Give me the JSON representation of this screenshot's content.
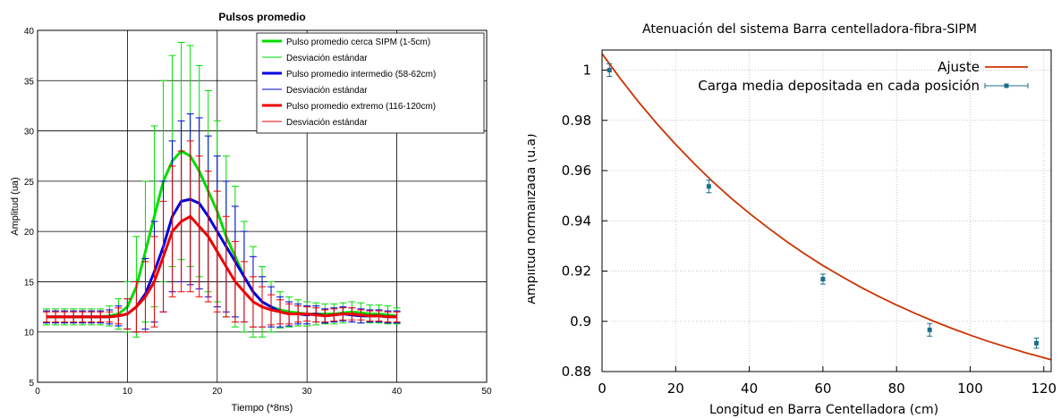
{
  "chart_data": [
    {
      "type": "line",
      "title": "Pulsos promedio",
      "xlabel": "Tiempo (*8ns)",
      "ylabel": "Amplitud (ua)",
      "xlim": [
        0,
        50
      ],
      "ylim": [
        5,
        40
      ],
      "xticks": [
        0,
        10,
        20,
        30,
        40,
        50
      ],
      "yticks": [
        5,
        10,
        15,
        20,
        25,
        30,
        35,
        40
      ],
      "grid": true,
      "legend_position": "top-right",
      "colors": {
        "green": "#00dd00",
        "blue": "#0000dd",
        "red": "#ee0000"
      },
      "series": [
        {
          "name": "Pulso promedio cerca SIPM (1-5cm)",
          "err_name": "Desviación estándar",
          "color": "#00dd00",
          "x": [
            1,
            2,
            3,
            4,
            5,
            6,
            7,
            8,
            9,
            10,
            11,
            12,
            13,
            14,
            15,
            16,
            17,
            18,
            19,
            20,
            21,
            22,
            23,
            24,
            25,
            26,
            27,
            28,
            29,
            30,
            31,
            32,
            33,
            34,
            35,
            36,
            37,
            38,
            39,
            40
          ],
          "y": [
            11.5,
            11.5,
            11.5,
            11.5,
            11.5,
            11.5,
            11.5,
            11.6,
            11.8,
            12.5,
            14.5,
            18.0,
            21.5,
            25.0,
            27.0,
            28.0,
            27.5,
            26.0,
            24.0,
            22.0,
            19.5,
            17.5,
            15.5,
            14.0,
            13.0,
            12.5,
            12.2,
            12.0,
            11.9,
            11.8,
            11.8,
            11.8,
            11.8,
            11.9,
            12.0,
            11.9,
            11.8,
            11.8,
            11.7,
            11.6
          ],
          "err": [
            0.8,
            0.8,
            0.8,
            0.8,
            0.8,
            0.8,
            0.8,
            1.0,
            1.5,
            2.5,
            5.0,
            7.0,
            9.0,
            10.0,
            10.5,
            10.8,
            11.0,
            10.5,
            10.0,
            9.0,
            8.0,
            7.0,
            5.5,
            4.5,
            3.5,
            2.5,
            1.8,
            1.5,
            1.3,
            1.2,
            1.1,
            1.0,
            1.0,
            1.0,
            1.0,
            1.0,
            0.9,
            0.9,
            0.9,
            0.8
          ]
        },
        {
          "name": "Pulso promedio intermedio (58-62cm)",
          "err_name": "Desviación estándar",
          "color": "#0000dd",
          "x": [
            1,
            2,
            3,
            4,
            5,
            6,
            7,
            8,
            9,
            10,
            11,
            12,
            13,
            14,
            15,
            16,
            17,
            18,
            19,
            20,
            21,
            22,
            23,
            24,
            25,
            26,
            27,
            28,
            29,
            30,
            31,
            32,
            33,
            34,
            35,
            36,
            37,
            38,
            39,
            40
          ],
          "y": [
            11.5,
            11.5,
            11.5,
            11.5,
            11.5,
            11.5,
            11.5,
            11.5,
            11.6,
            11.8,
            12.5,
            13.8,
            16.0,
            18.5,
            21.5,
            23.0,
            23.2,
            22.8,
            21.5,
            20.0,
            18.5,
            17.0,
            15.5,
            14.0,
            13.0,
            12.5,
            12.0,
            11.8,
            11.8,
            11.7,
            11.8,
            11.6,
            11.7,
            11.8,
            11.7,
            11.6,
            11.6,
            11.6,
            11.5,
            11.5
          ],
          "err": [
            0.6,
            0.6,
            0.6,
            0.6,
            0.6,
            0.6,
            0.6,
            0.7,
            1.0,
            1.5,
            2.5,
            3.5,
            5.0,
            6.5,
            7.5,
            8.0,
            8.5,
            8.5,
            8.0,
            7.5,
            6.5,
            5.5,
            4.5,
            3.5,
            2.5,
            2.0,
            1.5,
            1.2,
            1.0,
            0.9,
            0.8,
            0.7,
            0.7,
            0.7,
            0.7,
            0.7,
            0.6,
            0.6,
            0.6,
            0.6
          ]
        },
        {
          "name": "Pulso promedio extremo (116-120cm)",
          "err_name": "Desviación estándar",
          "color": "#ee0000",
          "x": [
            1,
            2,
            3,
            4,
            5,
            6,
            7,
            8,
            9,
            10,
            11,
            12,
            13,
            14,
            15,
            16,
            17,
            18,
            19,
            20,
            21,
            22,
            23,
            24,
            25,
            26,
            27,
            28,
            29,
            30,
            31,
            32,
            33,
            34,
            35,
            36,
            37,
            38,
            39,
            40
          ],
          "y": [
            11.5,
            11.5,
            11.5,
            11.5,
            11.5,
            11.5,
            11.5,
            11.5,
            11.6,
            11.8,
            12.5,
            13.5,
            15.0,
            17.5,
            20.0,
            21.0,
            21.5,
            20.5,
            19.5,
            18.0,
            16.5,
            15.0,
            14.0,
            13.0,
            12.5,
            12.2,
            12.0,
            11.8,
            11.8,
            11.8,
            11.7,
            11.6,
            11.7,
            11.8,
            11.8,
            11.7,
            11.6,
            11.6,
            11.5,
            11.5
          ],
          "err": [
            0.5,
            0.5,
            0.5,
            0.5,
            0.5,
            0.5,
            0.5,
            0.5,
            0.8,
            1.5,
            2.5,
            3.5,
            4.5,
            5.5,
            6.5,
            7.0,
            7.5,
            7.0,
            6.5,
            6.0,
            5.0,
            4.0,
            3.0,
            2.5,
            2.0,
            1.5,
            1.2,
            1.0,
            0.8,
            0.7,
            0.7,
            0.6,
            0.6,
            0.6,
            0.6,
            0.5,
            0.5,
            0.5,
            0.5,
            0.5
          ]
        }
      ]
    },
    {
      "type": "scatter",
      "title": "Atenuación del sistema Barra centelladora-fibra-SIPM",
      "xlabel": "Longitud en Barra Centelladora (cm)",
      "ylabel": "Amplitud normalizada (u.a)",
      "xlim": [
        0,
        122
      ],
      "ylim": [
        0.88,
        1.008
      ],
      "xticks": [
        0,
        20,
        40,
        60,
        80,
        100,
        120
      ],
      "yticks": [
        0.88,
        0.9,
        0.92,
        0.94,
        0.96,
        0.98,
        1
      ],
      "ytick_labels": [
        "0.88",
        "0.9",
        "0.92",
        "0.94",
        "0.96",
        "0.98",
        "1"
      ],
      "grid": true,
      "legend_position": "top-right",
      "fit": {
        "name": "Ajuste",
        "color": "#cc3300",
        "x": [
          0,
          5,
          10,
          15,
          20,
          25,
          30,
          35,
          40,
          45,
          50,
          55,
          60,
          65,
          70,
          75,
          80,
          85,
          90,
          95,
          100,
          105,
          110,
          115,
          120,
          122
        ],
        "y": [
          1.0065,
          0.9965,
          0.9872,
          0.9785,
          0.9704,
          0.9628,
          0.9557,
          0.9491,
          0.943,
          0.9373,
          0.9319,
          0.9269,
          0.9222,
          0.9179,
          0.9138,
          0.91,
          0.9065,
          0.9032,
          0.9001,
          0.8972,
          0.8945,
          0.892,
          0.8897,
          0.8875,
          0.8855,
          0.8847
        ]
      },
      "points": {
        "name": "Carga media depositada en cada posición",
        "color": "#1a6e8e",
        "x": [
          2,
          29,
          60,
          89,
          118
        ],
        "y": [
          1.0,
          0.9537,
          0.9168,
          0.8966,
          0.8913
        ],
        "err": [
          0.0025,
          0.0025,
          0.002,
          0.0025,
          0.002
        ]
      }
    }
  ]
}
